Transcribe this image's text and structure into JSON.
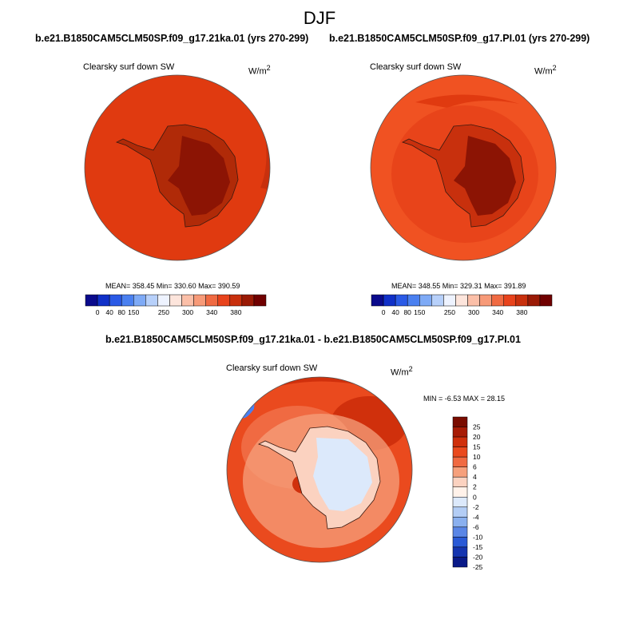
{
  "season_title": "DJF",
  "panels": [
    {
      "title": "b.e21.B1850CAM5CLM50SP.f09_g17.21ka.01 (yrs 270-299)",
      "variable": "Clearsky surf down SW",
      "units": "W/m",
      "units_sup": "2",
      "stats": "MEAN= 358.45  Min= 330.60  Max= 390.59",
      "colorbar_labels": [
        "0",
        "40",
        "80",
        "150",
        "250",
        "300",
        "340",
        "380"
      ]
    },
    {
      "title": "b.e21.B1850CAM5CLM50SP.f09_g17.PI.01 (yrs 270-299)",
      "variable": "Clearsky surf down SW",
      "units": "W/m",
      "units_sup": "2",
      "stats": "MEAN= 348.55  Min= 329.31  Max= 391.89",
      "colorbar_labels": [
        "0",
        "40",
        "80",
        "150",
        "250",
        "300",
        "340",
        "380"
      ]
    },
    {
      "title": "b.e21.B1850CAM5CLM50SP.f09_g17.21ka.01 - b.e21.B1850CAM5CLM50SP.f09_g17.PI.01",
      "variable": "Clearsky surf down SW",
      "units": "W/m",
      "units_sup": "2",
      "stats": "MIN =  -6.53 MAX =  28.15",
      "colorbar_labels": [
        "25",
        "20",
        "15",
        "10",
        "6",
        "4",
        "2",
        "0",
        "-2",
        "-4",
        "-6",
        "-10",
        "-15",
        "-20",
        "-25"
      ]
    }
  ],
  "colors": {
    "abs_scale": [
      "#0a0a8c",
      "#1030c8",
      "#2a5ae6",
      "#4a80f0",
      "#7eaaf6",
      "#b7d0fa",
      "#eef3ff",
      "#fde5dc",
      "#fbbfa8",
      "#f79a78",
      "#f06a42",
      "#e8431c",
      "#c8300d",
      "#9a1a05",
      "#700000"
    ],
    "diff_scale": [
      "#7a0c00",
      "#a81c06",
      "#d0300c",
      "#ea4a1e",
      "#f06a42",
      "#f6a07c",
      "#fbd2c0",
      "#fff2ea",
      "#dce9fb",
      "#b3cdf5",
      "#8ab0ef",
      "#5a86e6",
      "#2a5ad6",
      "#1535b0",
      "#0a1a88"
    ]
  }
}
